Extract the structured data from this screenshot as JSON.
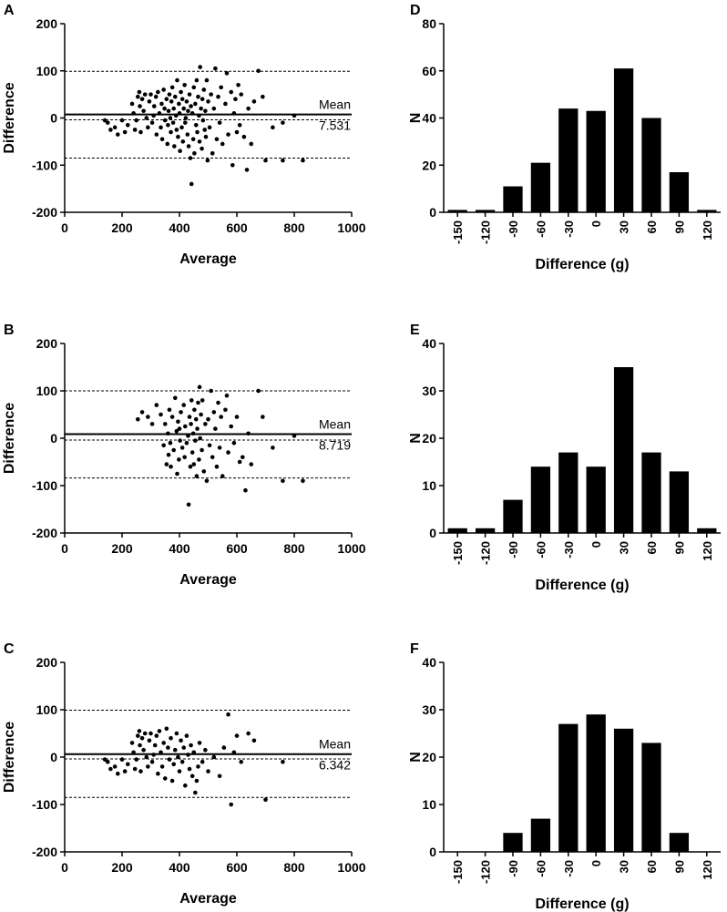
{
  "chart_data": [
    {
      "panel": "A",
      "type": "scatter",
      "xlabel": "Average",
      "ylabel": "Difference",
      "xlim": [
        0,
        1000
      ],
      "ylim": [
        -200,
        200
      ],
      "xticks": [
        "0",
        "200",
        "400",
        "600",
        "800",
        "1000"
      ],
      "yticks": [
        "-200",
        "-100",
        "0",
        "100",
        "200"
      ],
      "mean_label": "Mean",
      "mean_value": "7.531",
      "mean": 7.531,
      "upper_loa": 99,
      "lower_loa": -85,
      "zero_line": 0,
      "points": [
        [
          140,
          -5
        ],
        [
          150,
          -10
        ],
        [
          160,
          -25
        ],
        [
          175,
          -20
        ],
        [
          185,
          -35
        ],
        [
          200,
          -5
        ],
        [
          210,
          -30
        ],
        [
          220,
          -15
        ],
        [
          235,
          30
        ],
        [
          240,
          10
        ],
        [
          245,
          -25
        ],
        [
          250,
          -5
        ],
        [
          255,
          45
        ],
        [
          260,
          55
        ],
        [
          262,
          25
        ],
        [
          265,
          -30
        ],
        [
          270,
          40
        ],
        [
          275,
          15
        ],
        [
          280,
          50
        ],
        [
          285,
          0
        ],
        [
          290,
          -20
        ],
        [
          295,
          35
        ],
        [
          300,
          50
        ],
        [
          305,
          -10
        ],
        [
          310,
          5
        ],
        [
          312,
          25
        ],
        [
          318,
          45
        ],
        [
          320,
          -35
        ],
        [
          325,
          55
        ],
        [
          330,
          10
        ],
        [
          335,
          -20
        ],
        [
          338,
          30
        ],
        [
          340,
          -45
        ],
        [
          345,
          60
        ],
        [
          348,
          20
        ],
        [
          350,
          -5
        ],
        [
          355,
          40
        ],
        [
          358,
          -55
        ],
        [
          360,
          -15
        ],
        [
          362,
          15
        ],
        [
          365,
          50
        ],
        [
          368,
          0
        ],
        [
          370,
          -30
        ],
        [
          372,
          35
        ],
        [
          375,
          65
        ],
        [
          378,
          -10
        ],
        [
          380,
          20
        ],
        [
          382,
          -60
        ],
        [
          385,
          45
        ],
        [
          388,
          5
        ],
        [
          390,
          -25
        ],
        [
          392,
          80
        ],
        [
          395,
          -40
        ],
        [
          398,
          30
        ],
        [
          400,
          10
        ],
        [
          402,
          -70
        ],
        [
          405,
          55
        ],
        [
          408,
          -20
        ],
        [
          410,
          40
        ],
        [
          412,
          -50
        ],
        [
          415,
          20
        ],
        [
          418,
          70
        ],
        [
          420,
          -10
        ],
        [
          422,
          0
        ],
        [
          425,
          35
        ],
        [
          428,
          -35
        ],
        [
          430,
          15
        ],
        [
          432,
          -60
        ],
        [
          435,
          50
        ],
        [
          438,
          -85
        ],
        [
          440,
          25
        ],
        [
          442,
          -140
        ],
        [
          445,
          10
        ],
        [
          448,
          -45
        ],
        [
          450,
          65
        ],
        [
          452,
          -75
        ],
        [
          455,
          30
        ],
        [
          458,
          -15
        ],
        [
          460,
          80
        ],
        [
          462,
          -30
        ],
        [
          465,
          45
        ],
        [
          468,
          5
        ],
        [
          470,
          -50
        ],
        [
          472,
          108
        ],
        [
          475,
          20
        ],
        [
          478,
          -65
        ],
        [
          480,
          40
        ],
        [
          482,
          -5
        ],
        [
          485,
          60
        ],
        [
          488,
          -25
        ],
        [
          490,
          15
        ],
        [
          492,
          -40
        ],
        [
          495,
          80
        ],
        [
          498,
          -90
        ],
        [
          500,
          35
        ],
        [
          505,
          -20
        ],
        [
          510,
          50
        ],
        [
          515,
          -75
        ],
        [
          520,
          20
        ],
        [
          525,
          105
        ],
        [
          530,
          -45
        ],
        [
          535,
          45
        ],
        [
          540,
          -10
        ],
        [
          545,
          65
        ],
        [
          550,
          -55
        ],
        [
          560,
          30
        ],
        [
          565,
          95
        ],
        [
          570,
          -35
        ],
        [
          580,
          55
        ],
        [
          585,
          -100
        ],
        [
          590,
          10
        ],
        [
          595,
          40
        ],
        [
          600,
          -30
        ],
        [
          605,
          70
        ],
        [
          610,
          -15
        ],
        [
          615,
          50
        ],
        [
          625,
          -40
        ],
        [
          635,
          -110
        ],
        [
          640,
          20
        ],
        [
          650,
          -55
        ],
        [
          660,
          35
        ],
        [
          675,
          100
        ],
        [
          690,
          45
        ],
        [
          700,
          -90
        ],
        [
          725,
          -20
        ],
        [
          760,
          -10
        ],
        [
          760,
          -90
        ],
        [
          800,
          5
        ],
        [
          830,
          -90
        ]
      ]
    },
    {
      "panel": "B",
      "type": "scatter",
      "xlabel": "Average",
      "ylabel": "Difference",
      "xlim": [
        0,
        1000
      ],
      "ylim": [
        -200,
        200
      ],
      "xticks": [
        "0",
        "200",
        "400",
        "600",
        "800",
        "1000"
      ],
      "yticks": [
        "-200",
        "-100",
        "0",
        "100",
        "200"
      ],
      "mean_label": "Mean",
      "mean_value": "8.719",
      "mean": 8.719,
      "upper_loa": 100,
      "lower_loa": -84,
      "zero_line": 0,
      "points": [
        [
          255,
          40
        ],
        [
          270,
          55
        ],
        [
          290,
          45
        ],
        [
          305,
          30
        ],
        [
          320,
          70
        ],
        [
          335,
          50
        ],
        [
          345,
          -15
        ],
        [
          350,
          30
        ],
        [
          355,
          -55
        ],
        [
          360,
          10
        ],
        [
          362,
          -35
        ],
        [
          365,
          60
        ],
        [
          368,
          -10
        ],
        [
          370,
          -60
        ],
        [
          375,
          45
        ],
        [
          380,
          -25
        ],
        [
          385,
          85
        ],
        [
          390,
          15
        ],
        [
          392,
          -75
        ],
        [
          395,
          35
        ],
        [
          398,
          -45
        ],
        [
          400,
          20
        ],
        [
          402,
          -5
        ],
        [
          405,
          55
        ],
        [
          410,
          -20
        ],
        [
          415,
          70
        ],
        [
          418,
          -40
        ],
        [
          420,
          25
        ],
        [
          425,
          -10
        ],
        [
          430,
          5
        ],
        [
          432,
          -140
        ],
        [
          435,
          45
        ],
        [
          438,
          -60
        ],
        [
          440,
          30
        ],
        [
          442,
          80
        ],
        [
          445,
          -30
        ],
        [
          448,
          10
        ],
        [
          450,
          -55
        ],
        [
          452,
          60
        ],
        [
          455,
          -5
        ],
        [
          458,
          40
        ],
        [
          460,
          -80
        ],
        [
          462,
          20
        ],
        [
          465,
          75
        ],
        [
          468,
          -45
        ],
        [
          470,
          108
        ],
        [
          472,
          0
        ],
        [
          475,
          50
        ],
        [
          478,
          -25
        ],
        [
          480,
          80
        ],
        [
          485,
          -70
        ],
        [
          490,
          30
        ],
        [
          495,
          -90
        ],
        [
          500,
          40
        ],
        [
          505,
          -15
        ],
        [
          510,
          100
        ],
        [
          515,
          -40
        ],
        [
          520,
          55
        ],
        [
          525,
          20
        ],
        [
          530,
          -60
        ],
        [
          535,
          75
        ],
        [
          540,
          -20
        ],
        [
          545,
          45
        ],
        [
          550,
          -80
        ],
        [
          560,
          60
        ],
        [
          565,
          90
        ],
        [
          570,
          -30
        ],
        [
          580,
          25
        ],
        [
          590,
          -10
        ],
        [
          600,
          45
        ],
        [
          610,
          -50
        ],
        [
          620,
          -40
        ],
        [
          630,
          -110
        ],
        [
          640,
          10
        ],
        [
          650,
          -55
        ],
        [
          675,
          100
        ],
        [
          690,
          45
        ],
        [
          725,
          -20
        ],
        [
          760,
          -90
        ],
        [
          800,
          5
        ],
        [
          830,
          -90
        ]
      ]
    },
    {
      "panel": "C",
      "type": "scatter",
      "xlabel": "Average",
      "ylabel": "Difference",
      "xlim": [
        0,
        1000
      ],
      "ylim": [
        -200,
        200
      ],
      "xticks": [
        "0",
        "200",
        "400",
        "600",
        "800",
        "1000"
      ],
      "yticks": [
        "-200",
        "-100",
        "0",
        "100",
        "200"
      ],
      "mean_label": "Mean",
      "mean_value": "6.342",
      "mean": 6.342,
      "upper_loa": 99,
      "lower_loa": -85,
      "zero_line": 0,
      "points": [
        [
          140,
          -5
        ],
        [
          150,
          -10
        ],
        [
          160,
          -25
        ],
        [
          175,
          -20
        ],
        [
          185,
          -35
        ],
        [
          200,
          -5
        ],
        [
          210,
          -30
        ],
        [
          220,
          -15
        ],
        [
          235,
          30
        ],
        [
          240,
          10
        ],
        [
          245,
          -25
        ],
        [
          250,
          -5
        ],
        [
          255,
          45
        ],
        [
          260,
          55
        ],
        [
          262,
          25
        ],
        [
          265,
          -30
        ],
        [
          270,
          40
        ],
        [
          275,
          15
        ],
        [
          280,
          50
        ],
        [
          285,
          0
        ],
        [
          290,
          -20
        ],
        [
          295,
          35
        ],
        [
          300,
          50
        ],
        [
          305,
          -10
        ],
        [
          310,
          5
        ],
        [
          315,
          25
        ],
        [
          320,
          45
        ],
        [
          325,
          -35
        ],
        [
          330,
          55
        ],
        [
          335,
          10
        ],
        [
          340,
          -20
        ],
        [
          345,
          30
        ],
        [
          350,
          -45
        ],
        [
          355,
          60
        ],
        [
          360,
          20
        ],
        [
          365,
          -5
        ],
        [
          370,
          40
        ],
        [
          375,
          -50
        ],
        [
          380,
          -15
        ],
        [
          385,
          15
        ],
        [
          390,
          50
        ],
        [
          395,
          0
        ],
        [
          400,
          -30
        ],
        [
          405,
          35
        ],
        [
          410,
          -10
        ],
        [
          415,
          20
        ],
        [
          420,
          -60
        ],
        [
          425,
          45
        ],
        [
          430,
          5
        ],
        [
          435,
          -25
        ],
        [
          440,
          25
        ],
        [
          445,
          -40
        ],
        [
          450,
          10
        ],
        [
          455,
          -75
        ],
        [
          460,
          -50
        ],
        [
          465,
          -20
        ],
        [
          470,
          30
        ],
        [
          480,
          -10
        ],
        [
          490,
          15
        ],
        [
          500,
          -30
        ],
        [
          520,
          0
        ],
        [
          540,
          -40
        ],
        [
          555,
          20
        ],
        [
          570,
          90
        ],
        [
          580,
          -100
        ],
        [
          590,
          10
        ],
        [
          600,
          45
        ],
        [
          615,
          -10
        ],
        [
          640,
          50
        ],
        [
          660,
          35
        ],
        [
          700,
          -90
        ],
        [
          760,
          -10
        ]
      ]
    },
    {
      "panel": "D",
      "type": "bar",
      "xlabel": "Difference (g)",
      "ylabel": "N",
      "ylim": [
        0,
        80
      ],
      "yticks": [
        "0",
        "20",
        "40",
        "60",
        "80"
      ],
      "categories": [
        "-150",
        "-120",
        "-90",
        "-60",
        "-30",
        "0",
        "30",
        "60",
        "90",
        "120"
      ],
      "values": [
        1,
        1,
        11,
        21,
        44,
        43,
        61,
        40,
        17,
        1
      ]
    },
    {
      "panel": "E",
      "type": "bar",
      "xlabel": "Difference (g)",
      "ylabel": "N",
      "ylim": [
        0,
        40
      ],
      "yticks": [
        "0",
        "10",
        "20",
        "30",
        "40"
      ],
      "categories": [
        "-150",
        "-120",
        "-90",
        "-60",
        "-30",
        "0",
        "30",
        "60",
        "90",
        "120"
      ],
      "values": [
        1,
        1,
        7,
        14,
        17,
        14,
        35,
        17,
        13,
        1
      ]
    },
    {
      "panel": "F",
      "type": "bar",
      "xlabel": "Difference (g)",
      "ylabel": "N",
      "ylim": [
        0,
        40
      ],
      "yticks": [
        "0",
        "10",
        "20",
        "30",
        "40"
      ],
      "categories": [
        "-150",
        "-120",
        "-90",
        "-60",
        "-30",
        "0",
        "30",
        "60",
        "90",
        "120"
      ],
      "values": [
        0,
        0,
        4,
        7,
        27,
        29,
        26,
        23,
        4,
        0
      ]
    }
  ]
}
